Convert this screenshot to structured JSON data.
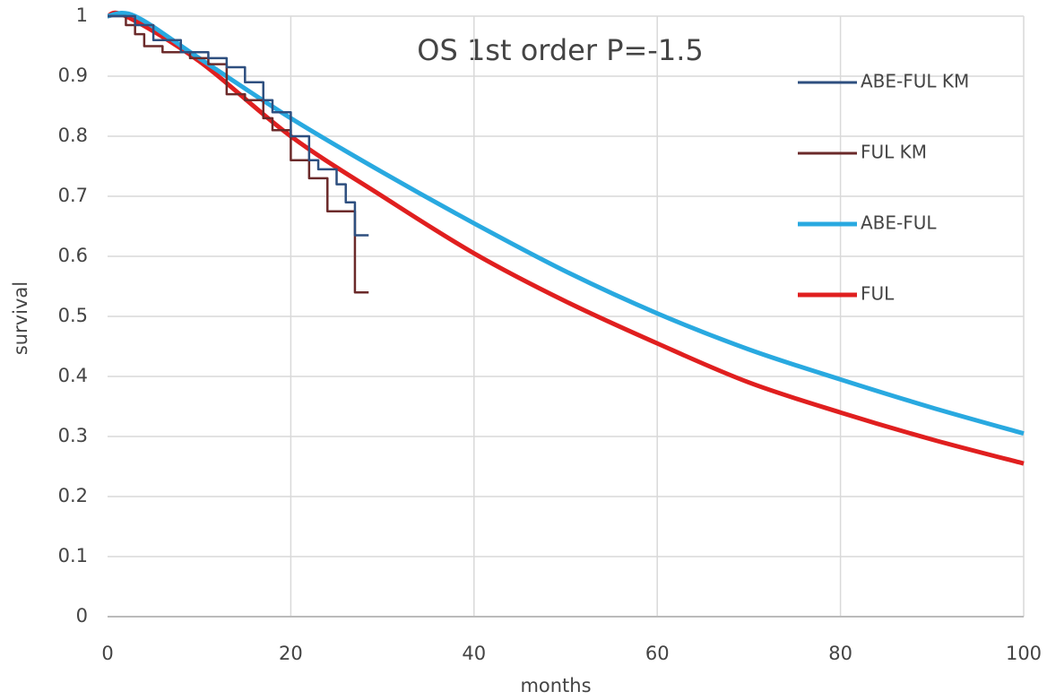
{
  "chart_data": {
    "type": "line",
    "title": "OS 1st order P=-1.5",
    "x_label": "months",
    "y_label": "survival",
    "xlim": [
      0,
      100
    ],
    "xticks": [
      0,
      20,
      40,
      60,
      80,
      100
    ],
    "ylim": [
      0,
      1
    ],
    "yticks": [
      0,
      0.1,
      0.2,
      0.3,
      0.4,
      0.5,
      0.6,
      0.7,
      0.8,
      0.9,
      1
    ],
    "grid": true,
    "legend": "right",
    "series": [
      {
        "name": "ABE-FUL KM",
        "color": "#2e4f7f",
        "step": true,
        "x": [
          0,
          3,
          3,
          5,
          5,
          8,
          8,
          11,
          11,
          13,
          13,
          15,
          15,
          17,
          17,
          18,
          18,
          20,
          20,
          22,
          22,
          23,
          23,
          25,
          25,
          26,
          26,
          27,
          27,
          28.5
        ],
        "values": [
          1,
          1,
          0.985,
          0.985,
          0.96,
          0.96,
          0.94,
          0.94,
          0.93,
          0.93,
          0.915,
          0.915,
          0.89,
          0.89,
          0.86,
          0.86,
          0.84,
          0.84,
          0.8,
          0.8,
          0.76,
          0.76,
          0.745,
          0.745,
          0.72,
          0.72,
          0.69,
          0.69,
          0.635,
          0.635
        ]
      },
      {
        "name": "FUL KM",
        "color": "#6b2a2a",
        "step": true,
        "x": [
          0,
          2,
          2,
          3,
          3,
          4,
          4,
          6,
          6,
          9,
          9,
          11,
          11,
          13,
          13,
          15,
          15,
          17,
          17,
          18,
          18,
          20,
          20,
          22,
          22,
          24,
          24,
          27,
          27,
          28.5
        ],
        "values": [
          1,
          1,
          0.985,
          0.985,
          0.97,
          0.97,
          0.95,
          0.95,
          0.94,
          0.94,
          0.93,
          0.93,
          0.92,
          0.92,
          0.87,
          0.87,
          0.86,
          0.86,
          0.83,
          0.83,
          0.81,
          0.81,
          0.76,
          0.76,
          0.73,
          0.73,
          0.675,
          0.675,
          0.54,
          0.54
        ]
      },
      {
        "name": "ABE-FUL",
        "color": "#29a9e0",
        "smooth": true,
        "x": [
          0,
          3,
          10,
          20,
          30,
          40,
          50,
          60,
          70,
          80,
          90,
          100
        ],
        "values": [
          1,
          1,
          0.93,
          0.83,
          0.74,
          0.655,
          0.575,
          0.505,
          0.445,
          0.395,
          0.348,
          0.305
        ]
      },
      {
        "name": "FUL",
        "color": "#e01f1f",
        "smooth": true,
        "x": [
          0,
          2,
          10,
          20,
          30,
          40,
          50,
          60,
          70,
          80,
          90,
          100
        ],
        "values": [
          1,
          1,
          0.925,
          0.8,
          0.7,
          0.605,
          0.525,
          0.455,
          0.39,
          0.34,
          0.295,
          0.255
        ]
      }
    ]
  }
}
